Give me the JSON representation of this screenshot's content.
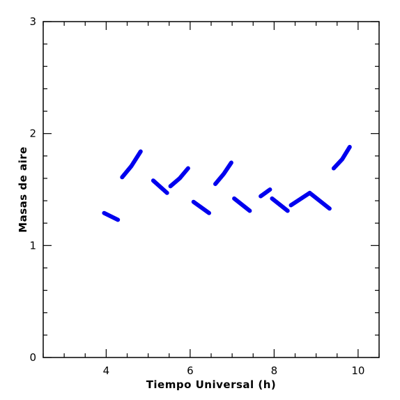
{
  "chart_data": {
    "type": "line",
    "title": "",
    "xlabel": "Tiempo Universal (h)",
    "ylabel": "Masas de aire",
    "xlim": [
      2.5,
      10.5
    ],
    "ylim": [
      0,
      3
    ],
    "x_ticks": [
      4,
      6,
      8,
      10
    ],
    "x_tick_labels": [
      "4",
      "6",
      "8",
      "10"
    ],
    "y_ticks": [
      0,
      1,
      2,
      3
    ],
    "y_tick_labels": [
      "0",
      "1",
      "2",
      "3"
    ],
    "x_minor_step": 0.5,
    "y_minor_step": 0.2,
    "grid": false,
    "legend": "none",
    "line_color": "#0000ee",
    "series": [
      {
        "x": [
          3.95,
          4.28
        ],
        "y": [
          1.29,
          1.23
        ]
      },
      {
        "x": [
          4.38,
          4.6,
          4.82
        ],
        "y": [
          1.61,
          1.71,
          1.84
        ]
      },
      {
        "x": [
          5.12,
          5.45
        ],
        "y": [
          1.58,
          1.47
        ]
      },
      {
        "x": [
          5.53,
          5.75,
          5.95
        ],
        "y": [
          1.53,
          1.6,
          1.69
        ]
      },
      {
        "x": [
          6.08,
          6.45
        ],
        "y": [
          1.39,
          1.29
        ]
      },
      {
        "x": [
          6.6,
          6.8,
          6.98
        ],
        "y": [
          1.55,
          1.64,
          1.74
        ]
      },
      {
        "x": [
          7.05,
          7.42
        ],
        "y": [
          1.42,
          1.31
        ]
      },
      {
        "x": [
          7.68,
          7.9
        ],
        "y": [
          1.44,
          1.5
        ]
      },
      {
        "x": [
          7.95,
          8.32
        ],
        "y": [
          1.42,
          1.31
        ]
      },
      {
        "x": [
          8.4,
          8.85
        ],
        "y": [
          1.36,
          1.47
        ]
      },
      {
        "x": [
          8.88,
          9.32
        ],
        "y": [
          1.46,
          1.33
        ]
      },
      {
        "x": [
          9.42,
          9.62,
          9.8
        ],
        "y": [
          1.69,
          1.77,
          1.88
        ]
      }
    ]
  }
}
